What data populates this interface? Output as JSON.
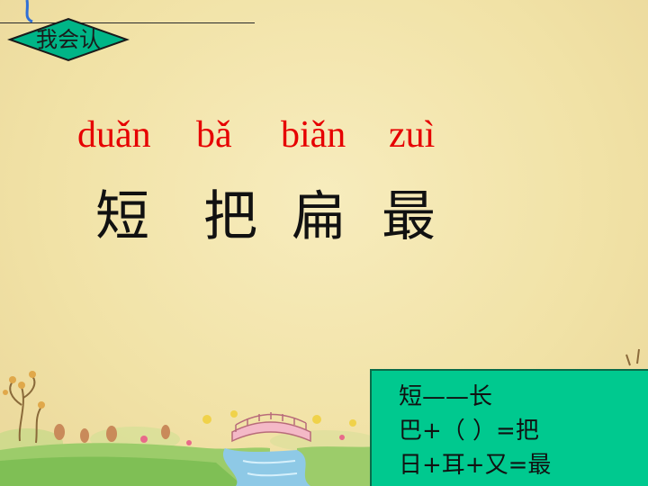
{
  "badge": {
    "label": "我会认"
  },
  "pinyin": [
    "duǎn",
    "bǎ",
    "biǎn",
    "zuì"
  ],
  "characters": [
    "短",
    "把",
    "扁",
    "最"
  ],
  "notes": {
    "lines": [
      "短——长",
      "巴+（ ）=把",
      "日+耳+又=最"
    ]
  },
  "colors": {
    "background": "#f3e6b0",
    "pinyin": "#e60000",
    "notes_box": "#00c98f",
    "badge": "#00b587"
  }
}
